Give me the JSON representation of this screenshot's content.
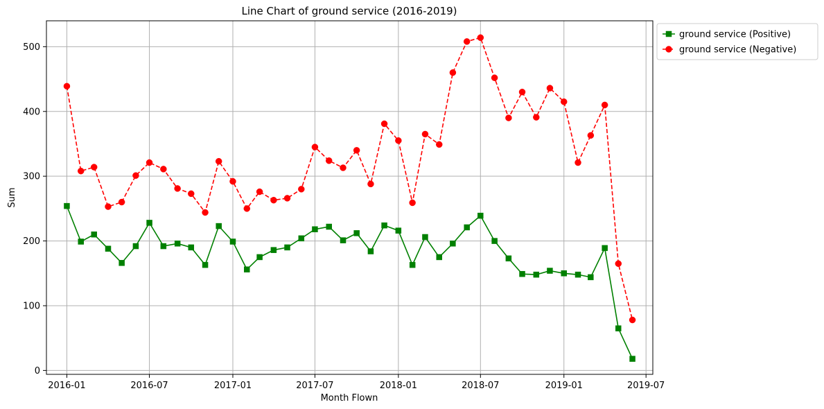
{
  "chart_data": {
    "type": "line",
    "title": "Line Chart of ground service (2016-2019)",
    "xlabel": "Month Flown",
    "ylabel": "Sum",
    "x": [
      "2016-01",
      "2016-02",
      "2016-03",
      "2016-04",
      "2016-05",
      "2016-06",
      "2016-07",
      "2016-08",
      "2016-09",
      "2016-10",
      "2016-11",
      "2016-12",
      "2017-01",
      "2017-02",
      "2017-03",
      "2017-04",
      "2017-05",
      "2017-06",
      "2017-07",
      "2017-08",
      "2017-09",
      "2017-10",
      "2017-11",
      "2017-12",
      "2018-01",
      "2018-02",
      "2018-03",
      "2018-04",
      "2018-05",
      "2018-06",
      "2018-07",
      "2018-08",
      "2018-09",
      "2018-10",
      "2018-11",
      "2018-12",
      "2019-01",
      "2019-02",
      "2019-03",
      "2019-04",
      "2019-05",
      "2019-06"
    ],
    "xlim": [
      "2015-11-17",
      "2019-07-16"
    ],
    "xticks": [
      "2016-01",
      "2016-07",
      "2017-01",
      "2017-07",
      "2018-01",
      "2018-07",
      "2019-01",
      "2019-07"
    ],
    "ylim": [
      -6,
      540
    ],
    "yticks": [
      0,
      100,
      200,
      300,
      400,
      500
    ],
    "grid": true,
    "legend_position": "outside-top-right",
    "series": [
      {
        "name": "ground service (Positive)",
        "color": "#008000",
        "line_style": "solid",
        "marker": "square",
        "values": [
          254,
          199,
          210,
          188,
          166,
          192,
          228,
          192,
          196,
          190,
          163,
          223,
          199,
          156,
          175,
          186,
          190,
          204,
          218,
          222,
          201,
          212,
          184,
          224,
          216,
          163,
          206,
          175,
          196,
          221,
          239,
          200,
          173,
          149,
          148,
          154,
          150,
          148,
          144,
          189,
          65,
          18
        ]
      },
      {
        "name": "ground service (Negative)",
        "color": "#ff0000",
        "line_style": "dashed",
        "marker": "circle",
        "values": [
          439,
          308,
          314,
          253,
          260,
          301,
          321,
          311,
          281,
          273,
          244,
          323,
          292,
          250,
          276,
          263,
          266,
          280,
          345,
          324,
          313,
          340,
          288,
          381,
          355,
          259,
          365,
          349,
          460,
          508,
          514,
          452,
          390,
          430,
          391,
          436,
          415,
          321,
          363,
          410,
          165,
          78
        ]
      }
    ]
  }
}
